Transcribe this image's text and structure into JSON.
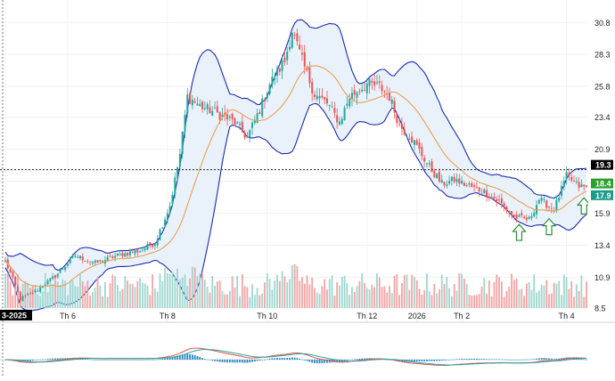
{
  "chart_data": {
    "type": "candlestick",
    "title": "",
    "y_axis": {
      "ticks": [
        30.8,
        28.3,
        25.8,
        23.4,
        20.9,
        18.4,
        15.9,
        13.4,
        10.9,
        8.5
      ],
      "ylim": [
        8.5,
        32.0
      ],
      "side": "right"
    },
    "x_axis": {
      "labels": [
        {
          "label": "3-2025",
          "i": 0
        },
        {
          "label": "Th 6",
          "i": 25
        },
        {
          "label": "Th 8",
          "i": 65
        },
        {
          "label": "Th 10",
          "i": 105
        },
        {
          "label": "Th 12",
          "i": 145
        },
        {
          "label": "2026",
          "i": 165
        },
        {
          "label": "Th 2",
          "i": 183
        },
        {
          "label": "Th 4",
          "i": 225
        }
      ]
    },
    "price_markers": [
      {
        "label": "19.3",
        "value": 19.3,
        "color": "#000000"
      },
      {
        "label": "18.4",
        "value": 18.4,
        "color": "#2ca02c"
      },
      {
        "label": "17.9",
        "value": 17.9,
        "color": "#1a9c8a"
      }
    ],
    "current_price_line": 19.3,
    "anchors": [
      [
        0,
        12.2
      ],
      [
        6,
        9.2
      ],
      [
        12,
        9.8
      ],
      [
        20,
        11.0
      ],
      [
        28,
        12.6
      ],
      [
        36,
        12.0
      ],
      [
        45,
        12.6
      ],
      [
        54,
        13.0
      ],
      [
        60,
        13.6
      ],
      [
        66,
        16.5
      ],
      [
        70,
        20.5
      ],
      [
        73,
        25.0
      ],
      [
        78,
        24.3
      ],
      [
        86,
        23.6
      ],
      [
        92,
        23.0
      ],
      [
        97,
        21.8
      ],
      [
        102,
        24.0
      ],
      [
        106,
        26.0
      ],
      [
        112,
        27.8
      ],
      [
        115,
        30.2
      ],
      [
        119,
        27.8
      ],
      [
        124,
        25.2
      ],
      [
        129,
        24.5
      ],
      [
        134,
        23.0
      ],
      [
        138,
        25.0
      ],
      [
        145,
        26.0
      ],
      [
        150,
        25.8
      ],
      [
        154,
        25.0
      ],
      [
        158,
        22.8
      ],
      [
        162,
        22.0
      ],
      [
        166,
        20.8
      ],
      [
        170,
        19.5
      ],
      [
        175,
        18.2
      ],
      [
        180,
        18.5
      ],
      [
        186,
        18.0
      ],
      [
        192,
        17.6
      ],
      [
        198,
        16.8
      ],
      [
        204,
        15.6
      ],
      [
        210,
        15.4
      ],
      [
        214,
        17.0
      ],
      [
        220,
        16.2
      ],
      [
        225,
        18.8
      ],
      [
        230,
        18.0
      ],
      [
        233,
        17.9
      ]
    ],
    "bollinger_color": "#1c2bb0",
    "bollinger_fill": "#e9f2fb",
    "ma_color": "#e8a052",
    "up_color": "#26a69a",
    "down_color": "#ef5350",
    "volume": {
      "max_display": 11.0,
      "base": 8.5
    },
    "macd": {
      "macd_color": "#e05050",
      "signal_color": "#26a69a",
      "hist_pos": "#2a86c8",
      "hist_neg": "#2a86c8"
    },
    "arrows": [
      {
        "i": 206,
        "dir": "up"
      },
      {
        "i": 218,
        "dir": "up"
      },
      {
        "i": 232,
        "dir": "up"
      }
    ]
  }
}
